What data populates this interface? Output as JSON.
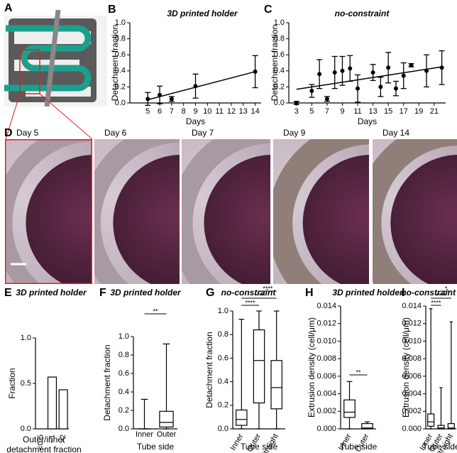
{
  "panel_a": {
    "label": "A"
  },
  "micrographs": {
    "label": "D",
    "days": [
      "Day 5",
      "Day 6",
      "Day 7",
      "Day 9",
      "Day 14"
    ]
  },
  "chart_data": [
    {
      "type": "scatter",
      "label": "B",
      "title": "3D printed holder",
      "xlabel": "Days",
      "ylabel": "Detachment fraction",
      "xlim": [
        3.5,
        14.5
      ],
      "xticks": [
        5,
        6,
        7,
        8,
        9,
        10,
        11,
        12,
        13,
        14
      ],
      "ylim": [
        0,
        1
      ],
      "yticks": [
        {
          "value": 0,
          "label": "0.0"
        },
        0.2,
        0.4,
        0.6,
        0.8,
        {
          "value": 1,
          "label": "1.0"
        }
      ],
      "series": [
        {
          "color": "#000000",
          "x": [
            5,
            6,
            7,
            9,
            14
          ],
          "values": [
            0.05,
            0.1,
            0.05,
            0.21,
            0.39
          ],
          "errors": [
            0.08,
            0.11,
            0.03,
            0.15,
            0.2
          ]
        },
        {
          "type": "line",
          "color": "#000000",
          "x": [
            5,
            14
          ],
          "values": [
            0.04,
            0.39
          ]
        }
      ]
    },
    {
      "type": "scatter",
      "label": "C",
      "title": "no-constraint",
      "xlabel": "Days",
      "ylabel": "Detachment fraction",
      "xlim": [
        2,
        22.5
      ],
      "xticks": [
        3,
        5,
        7,
        9,
        11,
        13,
        15,
        17,
        19,
        21
      ],
      "ylim": [
        0,
        1
      ],
      "yticks": [
        {
          "value": 0,
          "label": "0.0"
        },
        0.2,
        0.4,
        0.6,
        0.8,
        {
          "value": 1,
          "label": "1.0"
        }
      ],
      "series": [
        {
          "color": "#000000",
          "x": [
            3,
            5,
            6,
            7,
            8,
            9,
            10,
            11,
            13,
            14,
            15,
            16,
            17,
            18,
            20,
            22
          ],
          "values": [
            0.0,
            0.15,
            0.36,
            0.05,
            0.38,
            0.4,
            0.43,
            0.18,
            0.38,
            0.2,
            0.44,
            0.18,
            0.34,
            0.47,
            0.4,
            0.44
          ],
          "errors": [
            0.02,
            0.08,
            0.18,
            0.03,
            0.2,
            0.18,
            0.16,
            0.17,
            0.1,
            0.12,
            0.19,
            0.09,
            0.16,
            0.02,
            0.2,
            0.21
          ]
        },
        {
          "type": "line",
          "color": "#000000",
          "x": [
            3,
            22
          ],
          "values": [
            0.17,
            0.45
          ]
        }
      ]
    },
    {
      "type": "bar",
      "label": "E",
      "title": "3D printed holder",
      "ylabel": "Fraction",
      "xlabel": [
        "Outer/inner",
        "detachment fraction"
      ],
      "categories": [
        "<0.5",
        "~1",
        ">2"
      ],
      "values": [
        0,
        0.57,
        0.43
      ],
      "color": "#ffffff",
      "ylim": [
        0,
        1
      ],
      "yticks": [
        {
          "value": 0,
          "label": "0.0"
        },
        0.5,
        {
          "value": 1,
          "label": "1.0"
        }
      ]
    },
    {
      "type": "box",
      "label": "F",
      "title": "3D printed holder",
      "ylabel": "Detachment fraction",
      "xlabel": "Tube side",
      "categories": [
        "Inner",
        "Outer"
      ],
      "boxes": [
        {
          "whislo": 0,
          "q1": 0,
          "med": 0,
          "q3": 0,
          "whishi": 0.32
        },
        {
          "whislo": 0,
          "q1": 0.02,
          "med": 0.07,
          "q3": 0.19,
          "whishi": 0.92
        }
      ],
      "ylim": [
        0,
        1
      ],
      "yticks": [
        {
          "value": 0,
          "label": "0.0"
        },
        0.2,
        0.4,
        0.6,
        0.8,
        {
          "value": 1,
          "label": "1.0"
        }
      ],
      "significance": [
        {
          "text": "**",
          "between": [
            "Inner",
            "Outer"
          ]
        }
      ]
    },
    {
      "type": "box",
      "label": "G",
      "title": "no-constraint",
      "ylabel": "Detachment fraction",
      "xlabel": "Tube side",
      "categories": [
        "Inner",
        "Outer",
        "Straight"
      ],
      "boxes": [
        {
          "whislo": 0,
          "q1": 0.03,
          "med": 0.08,
          "q3": 0.16,
          "whishi": 0.93
        },
        {
          "whislo": 0,
          "q1": 0.22,
          "med": 0.58,
          "q3": 0.84,
          "whishi": 1.0
        },
        {
          "whislo": 0,
          "q1": 0.17,
          "med": 0.35,
          "q3": 0.58,
          "whishi": 1.0
        }
      ],
      "ylim": [
        0,
        1
      ],
      "yticks": [
        {
          "value": 0,
          "label": "0.0"
        },
        0.2,
        0.4,
        0.6,
        0.8,
        {
          "value": 1,
          "label": "1.0"
        }
      ],
      "significance": [
        {
          "text": "****",
          "between": [
            "Inner",
            "Outer"
          ]
        },
        {
          "text": "****",
          "between": [
            "Inner",
            "Straight"
          ]
        },
        {
          "text": "****",
          "between": [
            "Outer",
            "Straight"
          ]
        }
      ]
    },
    {
      "type": "box",
      "label": "H",
      "title": "3D printed holder",
      "ylabel": "Extrusion density (cell/μm)",
      "xlabel": "Tube side",
      "categories": [
        "Inner",
        "Outer"
      ],
      "boxes": [
        {
          "whislo": 0,
          "q1": 0.0013,
          "med": 0.0019,
          "q3": 0.0033,
          "whishi": 0.0054
        },
        {
          "whislo": 0,
          "q1": 0,
          "med": 0.0001,
          "q3": 0.0006,
          "whishi": 0.0008
        }
      ],
      "ylim": [
        0,
        0.014
      ],
      "yticks": [
        {
          "value": 0,
          "label": "0.000"
        },
        0.002,
        0.004,
        0.006,
        0.008,
        {
          "value": 0.01,
          "label": "0.010"
        },
        0.012,
        0.014
      ],
      "significance": [
        {
          "text": "**",
          "between": [
            "Inner",
            "Outer"
          ]
        }
      ]
    },
    {
      "type": "box",
      "label": "I",
      "title": "no-constraint",
      "ylabel": "Extrusion density (cell/μm)",
      "xlabel": "Tube side",
      "categories": [
        "Inner",
        "Outer",
        "Straight"
      ],
      "boxes": [
        {
          "whislo": 0,
          "q1": 0.0003,
          "med": 0.0008,
          "q3": 0.0017,
          "whishi": 0.0137
        },
        {
          "whislo": 0,
          "q1": 0,
          "med": 0.0001,
          "q3": 0.0004,
          "whishi": 0.0047
        },
        {
          "whislo": 0,
          "q1": 0,
          "med": 0.0001,
          "q3": 0.0006,
          "whishi": 0.0122
        }
      ],
      "ylim": [
        0,
        0.014
      ],
      "yticks": [
        {
          "value": 0,
          "label": "0.000"
        },
        0.002,
        0.004,
        0.006,
        0.008,
        {
          "value": 0.01,
          "label": "0.010"
        },
        0.012,
        0.014
      ],
      "significance": [
        {
          "text": "****",
          "between": [
            "Inner",
            "Outer"
          ]
        },
        {
          "text": "****",
          "between": [
            "Inner",
            "Straight"
          ]
        },
        {
          "text": "*",
          "between": [
            "Outer",
            "Straight"
          ]
        }
      ]
    }
  ]
}
